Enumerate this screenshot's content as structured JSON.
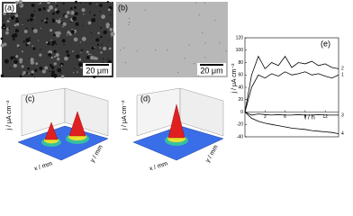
{
  "panels": [
    {
      "label": "(a)",
      "scale_bar": "20 μm"
    },
    {
      "label": "(b)",
      "scale_bar": "20 μm"
    },
    {
      "label": "(c)",
      "z_axis_label": "j / μA cm⁻²",
      "x_axis_label": "x / mm",
      "y_axis_label": "y / mm"
    },
    {
      "label": "(d)",
      "z_axis_label": "j / μA cm⁻²",
      "x_axis_label": "x / mm",
      "y_axis_label": "y / mm"
    }
  ],
  "chart_data": {
    "type": "line",
    "label": "(e)",
    "y_label": "j / μA cm⁻²",
    "x_label": "t / h",
    "x": [
      0,
      1,
      2,
      3,
      4,
      5,
      6,
      7,
      8,
      9,
      10,
      11,
      12,
      13,
      14
    ],
    "xlim": [
      0,
      14
    ],
    "xticks": [
      3,
      6,
      9,
      12
    ],
    "ylim": [
      -40,
      120
    ],
    "yticks": [
      -40,
      -20,
      0,
      20,
      40,
      60,
      80,
      100,
      120
    ],
    "series": [
      {
        "name": "2",
        "color": "#000000",
        "values": [
          0,
          60,
          90,
          70,
          80,
          75,
          90,
          72,
          80,
          78,
          82,
          75,
          78,
          72,
          70
        ]
      },
      {
        "name": "1",
        "color": "#000000",
        "values": [
          0,
          40,
          60,
          55,
          62,
          58,
          65,
          60,
          62,
          65,
          60,
          62,
          58,
          55,
          60
        ]
      },
      {
        "name": "3",
        "color": "#000000",
        "values": [
          0,
          -5,
          -3,
          -4,
          -5,
          -4,
          -5,
          -5,
          -4,
          -5,
          -5,
          -4,
          -5,
          -5,
          -5
        ]
      },
      {
        "name": "4",
        "color": "#000000",
        "values": [
          0,
          -10,
          -15,
          -18,
          -20,
          -22,
          -24,
          -26,
          -27,
          -28,
          -30,
          -31,
          -32,
          -33,
          -35
        ]
      }
    ]
  }
}
